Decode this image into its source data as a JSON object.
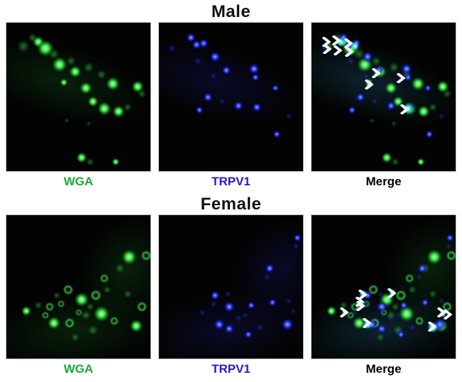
{
  "groups": [
    {
      "title": "Male",
      "panels": [
        {
          "label": "WGA",
          "label_color": "#1ba83c",
          "channel": "green",
          "cells": [
            [
              12,
              16,
              16,
              "gd"
            ],
            [
              18,
              10,
              12,
              "gd"
            ],
            [
              22,
              13,
              15,
              "g"
            ],
            [
              27,
              17,
              22,
              "g"
            ],
            [
              33,
              21,
              14,
              "gd"
            ],
            [
              37,
              28,
              20,
              "g"
            ],
            [
              45,
              26,
              12,
              "gd"
            ],
            [
              48,
              33,
              16,
              "g"
            ],
            [
              57,
              30,
              13,
              "gd"
            ],
            [
              66,
              35,
              12,
              "gd"
            ],
            [
              40,
              40,
              10,
              "g"
            ],
            [
              55,
              44,
              16,
              "g"
            ],
            [
              74,
              41,
              18,
              "g"
            ],
            [
              91,
              43,
              16,
              "g"
            ],
            [
              94,
              48,
              11,
              "gd"
            ],
            [
              60,
              53,
              14,
              "g"
            ],
            [
              68,
              58,
              18,
              "g"
            ],
            [
              78,
              60,
              16,
              "g"
            ],
            [
              84,
              57,
              10,
              "gd"
            ],
            [
              42,
              66,
              6,
              "gd"
            ],
            [
              57,
              68,
              6,
              "gd"
            ],
            [
              52,
              91,
              14,
              "g"
            ],
            [
              58,
              94,
              10,
              "gd"
            ],
            [
              76,
              94,
              10,
              "g"
            ]
          ],
          "arrows": []
        },
        {
          "label": "TRPV1",
          "label_color": "#2a18c9",
          "channel": "blue",
          "cells": [
            [
              22,
              10,
              12,
              "b"
            ],
            [
              26,
              15,
              12,
              "b"
            ],
            [
              31,
              14,
              12,
              "b"
            ],
            [
              9,
              17,
              10,
              "bd"
            ],
            [
              39,
              23,
              14,
              "b"
            ],
            [
              27,
              26,
              10,
              "bd"
            ],
            [
              47,
              32,
              12,
              "b"
            ],
            [
              66,
              31,
              14,
              "b"
            ],
            [
              67,
              37,
              10,
              "b"
            ],
            [
              38,
              36,
              8,
              "bd"
            ],
            [
              81,
              44,
              9,
              "b"
            ],
            [
              34,
              50,
              12,
              "b"
            ],
            [
              44,
              53,
              8,
              "bd"
            ],
            [
              55,
              56,
              12,
              "b"
            ],
            [
              68,
              57,
              12,
              "b"
            ],
            [
              28,
              59,
              10,
              "b"
            ],
            [
              90,
              63,
              8,
              "bd"
            ],
            [
              82,
              75,
              10,
              "b"
            ]
          ],
          "arrows": []
        },
        {
          "label": "Merge",
          "label_color": "#000000",
          "channel": "merge",
          "merge_of": [
            0,
            1
          ],
          "cells": [
            [
              20,
              13,
              12,
              "c"
            ],
            [
              30,
              16,
              11,
              "c"
            ],
            [
              46,
              34,
              9,
              "c"
            ],
            [
              40,
              42,
              8,
              "c"
            ],
            [
              67,
              58,
              13,
              "c"
            ]
          ],
          "arrow_color": "#ffffff",
          "arrows": [
            [
              10.1,
              12.8
            ],
            [
              17.4,
              11.8
            ],
            [
              25.6,
              13.7
            ],
            [
              10.6,
              17.5
            ],
            [
              18.4,
              18.5
            ],
            [
              26.1,
              19.4
            ],
            [
              44.9,
              34.1
            ],
            [
              62.3,
              37.4
            ],
            [
              40.1,
              41.7
            ],
            [
              64.3,
              58.3
            ]
          ]
        }
      ]
    },
    {
      "title": "Female",
      "panels": [
        {
          "label": "WGA",
          "label_color": "#1ba83c",
          "channel": "green",
          "cells": [
            [
              85,
              29,
              20,
              "g"
            ],
            [
              97,
              28,
              14,
              "gr"
            ],
            [
              79,
              37,
              12,
              "gd"
            ],
            [
              68,
              44,
              12,
              "gr"
            ],
            [
              43,
              52,
              14,
              "gr"
            ],
            [
              52,
              59,
              19,
              "g"
            ],
            [
              62,
              56,
              15,
              "gr"
            ],
            [
              14,
              67,
              13,
              "g"
            ],
            [
              22,
              63,
              10,
              "gd"
            ],
            [
              30,
              64,
              12,
              "gr"
            ],
            [
              33,
              75,
              17,
              "g"
            ],
            [
              44,
              75,
              14,
              "gr"
            ],
            [
              66,
              69,
              21,
              "g"
            ],
            [
              75,
              74,
              12,
              "gr"
            ],
            [
              90,
              77,
              17,
              "g"
            ],
            [
              94,
              64,
              14,
              "gr"
            ],
            [
              55,
              70,
              12,
              "gd"
            ],
            [
              38,
              62,
              10,
              "gr"
            ],
            [
              60,
              80,
              13,
              "gd"
            ],
            [
              27,
              70,
              10,
              "gr"
            ],
            [
              48,
              85,
              10,
              "gd"
            ],
            [
              84,
              55,
              10,
              "gd"
            ],
            [
              70,
              52,
              10,
              "gd"
            ],
            [
              35,
              56,
              9,
              "gd"
            ],
            [
              58,
              64,
              10,
              "gd"
            ],
            [
              50,
              68,
              9,
              "gr"
            ]
          ],
          "arrows": []
        },
        {
          "label": "TRPV1",
          "label_color": "#2a18c9",
          "channel": "blue",
          "cells": [
            [
              96,
              16,
              10,
              "b"
            ],
            [
              95,
              22,
              8,
              "bd"
            ],
            [
              77,
              37,
              12,
              "b"
            ],
            [
              75,
              43,
              8,
              "bd"
            ],
            [
              39,
              56,
              12,
              "b"
            ],
            [
              48,
              55,
              8,
              "bd"
            ],
            [
              38,
              62,
              9,
              "bd"
            ],
            [
              49,
              64,
              14,
              "b"
            ],
            [
              64,
              63,
              10,
              "b"
            ],
            [
              79,
              61,
              10,
              "b"
            ],
            [
              90,
              60,
              8,
              "bd"
            ],
            [
              42,
              76,
              14,
              "b"
            ],
            [
              49,
              79,
              12,
              "b"
            ],
            [
              62,
              83,
              10,
              "b"
            ],
            [
              89,
              76,
              16,
              "b"
            ],
            [
              93,
              67,
              8,
              "bd"
            ],
            [
              30,
              68,
              8,
              "bd"
            ],
            [
              55,
              72,
              8,
              "bd"
            ],
            [
              70,
              78,
              9,
              "bd"
            ],
            [
              60,
              70,
              8,
              "bd"
            ]
          ],
          "arrows": []
        },
        {
          "label": "Merge",
          "label_color": "#000000",
          "channel": "merge",
          "merge_of": [
            0,
            1
          ],
          "cells": [
            [
              36,
              55,
              10,
              "c"
            ],
            [
              34,
              62,
              10,
              "c"
            ],
            [
              39,
              76,
              12,
              "c"
            ],
            [
              84,
              78,
              14,
              "c"
            ],
            [
              23,
              68,
              8,
              "c"
            ],
            [
              56,
              54,
              9,
              "c"
            ],
            [
              91,
              69,
              9,
              "c"
            ]
          ],
          "arrow_color": "#ffffff",
          "arrows": [
            [
              35.7,
              55.2
            ],
            [
              55.6,
              54.7
            ],
            [
              33.3,
              60.6
            ],
            [
              33.8,
              63.5
            ],
            [
              22.7,
              68.0
            ],
            [
              38.2,
              75.4
            ],
            [
              90.3,
              68.0
            ],
            [
              94.7,
              69.5
            ],
            [
              83.6,
              77.8
            ]
          ]
        }
      ]
    }
  ]
}
